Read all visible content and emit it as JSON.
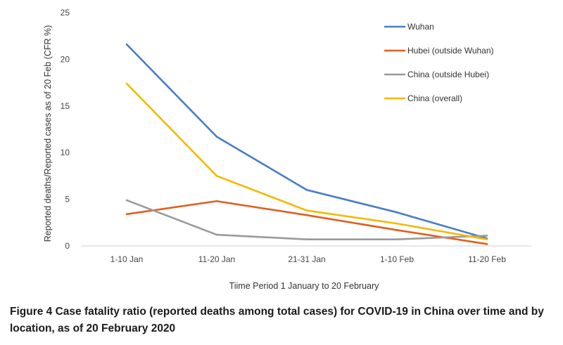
{
  "chart_data": {
    "type": "line",
    "categories": [
      "1-10 Jan",
      "11-20 Jan",
      "21-31 Jan",
      "1-10 Feb",
      "11-20 Feb"
    ],
    "series": [
      {
        "name": "Wuhan",
        "color": "#4a7cc9",
        "values": [
          21.6,
          11.7,
          6.0,
          3.6,
          0.8
        ]
      },
      {
        "name": "Hubei (outside Wuhan)",
        "color": "#e05f20",
        "values": [
          3.4,
          4.8,
          3.3,
          1.7,
          0.2
        ]
      },
      {
        "name": "China (outside Hubei)",
        "color": "#9a9a9a",
        "values": [
          4.9,
          1.2,
          0.7,
          0.7,
          1.1
        ]
      },
      {
        "name": "China (overall)",
        "color": "#f5b800",
        "values": [
          17.4,
          7.5,
          3.8,
          2.4,
          0.7
        ]
      }
    ],
    "ylim": [
      0,
      25
    ],
    "yticks": [
      0,
      5,
      10,
      15,
      20,
      25
    ],
    "xlabel": "Tiime Period 1 January to 20 February",
    "ylabel": "Reported deaths/Reported  cases as of 20 Feb (CFR %)",
    "legend_position": "top-right",
    "grid": false
  },
  "caption": "Figure 4 Case fatality ratio (reported deaths among total cases) for COVID-19 in China over time and by location, as of 20 February 2020"
}
